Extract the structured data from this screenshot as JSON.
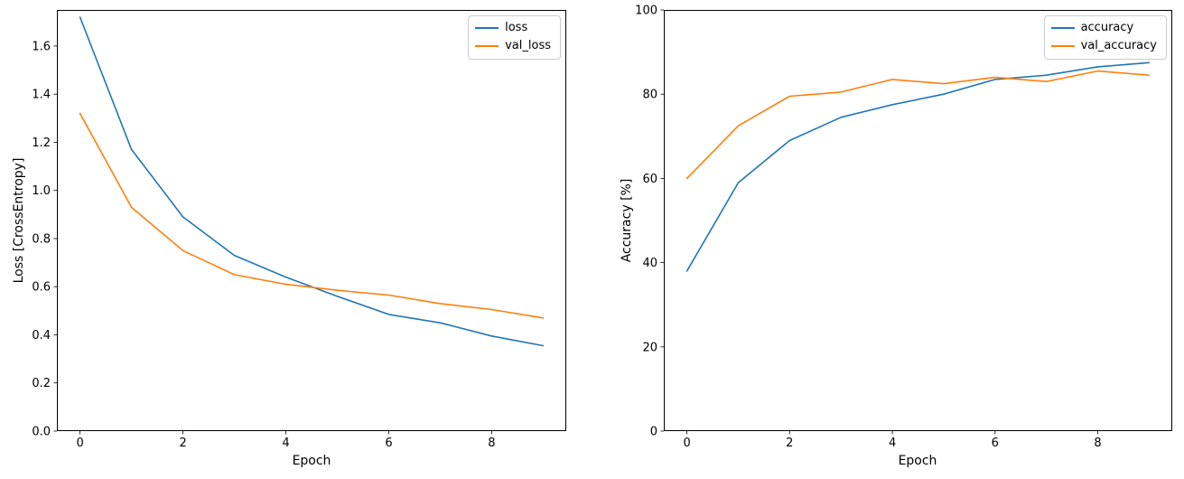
{
  "figure": {
    "background": "#ffffff",
    "line_colors": {
      "train": "#1f77b4",
      "validation": "#ff7f0e"
    }
  },
  "chart_data": [
    {
      "type": "line",
      "title": "",
      "xlabel": "Epoch",
      "ylabel": "Loss [CrossEntropy]",
      "x": [
        0,
        1,
        2,
        3,
        4,
        5,
        6,
        7,
        8,
        9
      ],
      "xlim": [
        -0.45,
        9.45
      ],
      "ylim": [
        0,
        1.75
      ],
      "xticks": [
        0,
        2,
        4,
        6,
        8
      ],
      "yticks": [
        0.0,
        0.2,
        0.4,
        0.6,
        0.8,
        1.0,
        1.2,
        1.4,
        1.6
      ],
      "ytick_decimals": 1,
      "grid": false,
      "legend_position": "top-right",
      "series": [
        {
          "name": "loss",
          "color": "#1f77b4",
          "values": [
            1.72,
            1.17,
            0.89,
            0.73,
            0.64,
            0.56,
            0.485,
            0.45,
            0.395,
            0.355
          ]
        },
        {
          "name": "val_loss",
          "color": "#ff7f0e",
          "values": [
            1.32,
            0.93,
            0.75,
            0.65,
            0.61,
            0.585,
            0.565,
            0.53,
            0.505,
            0.47
          ]
        }
      ]
    },
    {
      "type": "line",
      "title": "",
      "xlabel": "Epoch",
      "ylabel": "Accuracy [%]",
      "x": [
        0,
        1,
        2,
        3,
        4,
        5,
        6,
        7,
        8,
        9
      ],
      "xlim": [
        -0.45,
        9.45
      ],
      "ylim": [
        0,
        100
      ],
      "xticks": [
        0,
        2,
        4,
        6,
        8
      ],
      "yticks": [
        0,
        20,
        40,
        60,
        80,
        100
      ],
      "ytick_decimals": 0,
      "grid": false,
      "legend_position": "top-right",
      "series": [
        {
          "name": "accuracy",
          "color": "#1f77b4",
          "values": [
            38,
            59,
            69,
            74.5,
            77.5,
            80,
            83.5,
            84.5,
            86.5,
            87.5
          ]
        },
        {
          "name": "val_accuracy",
          "color": "#ff7f0e",
          "values": [
            60,
            72.5,
            79.5,
            80.5,
            83.5,
            82.5,
            84,
            83,
            85.5,
            84.5
          ]
        }
      ]
    }
  ]
}
